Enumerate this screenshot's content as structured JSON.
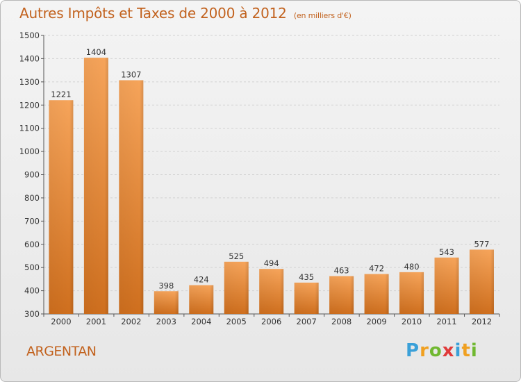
{
  "title": "Autres Impôts et Taxes de 2000 à 2012",
  "subtitle": "(en milliers d'€)",
  "location": "ARGENTAN",
  "logo": {
    "letters": [
      "P",
      "r",
      "o",
      "x",
      "i",
      "t",
      "i"
    ],
    "colors": [
      "#3aa0d8",
      "#f0a020",
      "#70b830",
      "#e03a3a",
      "#3aa0d8",
      "#f0a020",
      "#70b830"
    ]
  },
  "chart_data": {
    "type": "bar",
    "categories": [
      "2000",
      "2001",
      "2002",
      "2003",
      "2004",
      "2005",
      "2006",
      "2007",
      "2008",
      "2009",
      "2010",
      "2011",
      "2012"
    ],
    "values": [
      1221,
      1404,
      1307,
      398,
      424,
      525,
      494,
      435,
      463,
      472,
      480,
      543,
      577
    ],
    "title": "Autres Impôts et Taxes de 2000 à 2012",
    "subtitle": "(en milliers d'€)",
    "ylim": [
      300,
      1500
    ],
    "yticks": [
      300,
      400,
      500,
      600,
      700,
      800,
      900,
      1000,
      1100,
      1200,
      1300,
      1400,
      1500
    ],
    "grid": true,
    "bar_color": "#f0923a"
  }
}
